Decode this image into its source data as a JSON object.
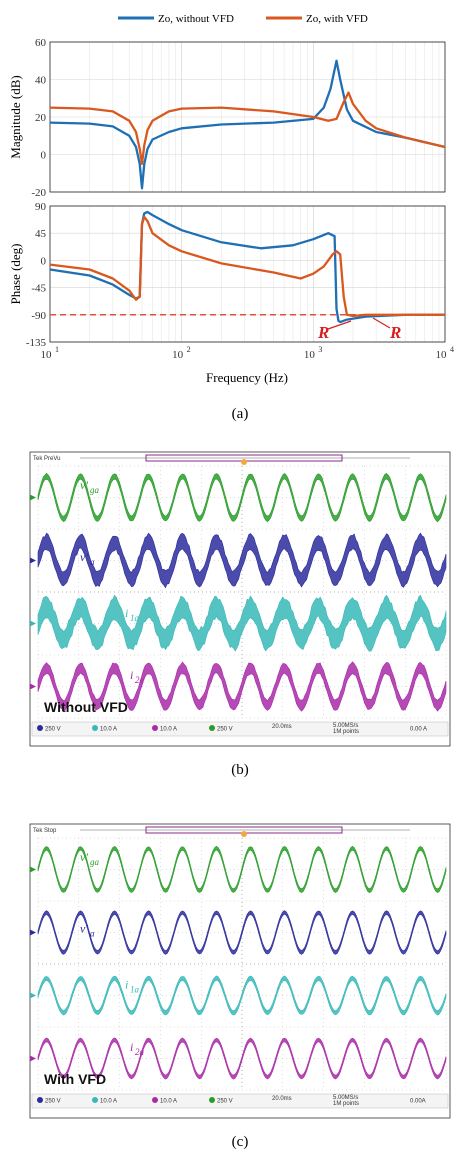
{
  "chart_data": [
    {
      "type": "line",
      "panel": "a",
      "legend": [
        "Zo, without VFD",
        "Zo, with VFD"
      ],
      "colors": {
        "without": "#1f6fb4",
        "with": "#d9581f",
        "ref": "#e05040"
      },
      "xlabel": "Frequency (Hz)",
      "xscale": "log",
      "xlim": [
        10,
        10000
      ],
      "xticks": [
        "10^1",
        "10^2",
        "10^3",
        "10^4"
      ],
      "magnitude": {
        "ylabel": "Magnitude (dB)",
        "ylim": [
          -20,
          60
        ],
        "yticks": [
          "60",
          "40",
          "20",
          "0",
          "-20"
        ],
        "series": [
          {
            "name": "Zo, without VFD",
            "x": [
              10,
              20,
              30,
              40,
              45,
              48,
              50,
              52,
              55,
              60,
              80,
              100,
              200,
              500,
              1000,
              1200,
              1350,
              1500,
              1600,
              1800,
              2000,
              3000,
              5000,
              10000
            ],
            "y": [
              17,
              16.5,
              15,
              10,
              4,
              -5,
              -18,
              -5,
              3,
              8,
              12,
              14,
              16,
              17,
              19,
              25,
              35,
              50,
              40,
              24,
              18,
              12,
              9,
              4
            ]
          },
          {
            "name": "Zo, with VFD",
            "x": [
              10,
              20,
              30,
              40,
              45,
              48,
              50,
              52,
              55,
              60,
              80,
              100,
              200,
              500,
              1000,
              1300,
              1500,
              1700,
              1850,
              2000,
              2500,
              3000,
              5000,
              10000
            ],
            "y": [
              25,
              24.5,
              23,
              18,
              12,
              3,
              -5,
              5,
              13,
              18,
              23,
              24.5,
              25,
              23,
              20,
              18,
              19,
              28,
              33,
              27,
              18,
              14,
              9,
              4
            ]
          }
        ]
      },
      "phase": {
        "ylabel": "Phase (deg)",
        "ylim": [
          -135,
          90
        ],
        "yticks": [
          "90",
          "45",
          "0",
          "-45",
          "-90",
          "-135"
        ],
        "ref_line": -90,
        "annotations": [
          "R",
          "R"
        ],
        "series": [
          {
            "name": "Zo, without VFD",
            "x": [
              10,
              20,
              30,
              40,
              45,
              48,
              50,
              52,
              55,
              60,
              80,
              100,
              200,
              400,
              700,
              1000,
              1300,
              1450,
              1500,
              1550,
              1600,
              1800,
              2500,
              5000,
              10000
            ],
            "y": [
              -15,
              -25,
              -40,
              -57,
              -63,
              -60,
              60,
              78,
              80,
              75,
              60,
              50,
              30,
              20,
              25,
              35,
              45,
              40,
              -80,
              -100,
              -102,
              -98,
              -93,
              -90,
              -90
            ]
          },
          {
            "name": "Zo, with VFD",
            "x": [
              10,
              20,
              30,
              40,
              45,
              48,
              50,
              52,
              55,
              60,
              80,
              100,
              200,
              500,
              800,
              1000,
              1200,
              1400,
              1500,
              1600,
              1700,
              1800,
              2000,
              2500,
              5000,
              10000
            ],
            "y": [
              -7,
              -15,
              -30,
              -50,
              -65,
              -60,
              60,
              72,
              65,
              45,
              25,
              15,
              -5,
              -20,
              -30,
              -22,
              -10,
              10,
              15,
              10,
              -60,
              -90,
              -92,
              -90,
              -90,
              -90
            ]
          }
        ]
      }
    },
    {
      "type": "line",
      "panel": "b",
      "title": "Without VFD",
      "scope_header": "Tek PreVu",
      "traces": [
        {
          "label": "v'",
          "sub": "ga",
          "color": "#2a9c2a",
          "cycles": 12,
          "amp": 0.8,
          "noise": 0.12
        },
        {
          "label": "v'",
          "sub": "a",
          "color": "#2b2b9c",
          "cycles": 12,
          "amp": 0.7,
          "noise": 0.45
        },
        {
          "label": "i",
          "sub": "1a",
          "color": "#38b8b8",
          "cycles": 12,
          "amp": 0.6,
          "noise": 0.65
        },
        {
          "label": "i",
          "sub": "2a",
          "color": "#a82aa8",
          "cycles": 12,
          "amp": 0.7,
          "noise": 0.3
        }
      ],
      "status_bar": [
        "250 V",
        "10.0 A",
        "10.0 A",
        "250 V",
        "20.0ms",
        "5.00MS/s",
        "1M points",
        "0.00 A"
      ]
    },
    {
      "type": "line",
      "panel": "c",
      "title": "With VFD",
      "scope_header": "Tek Stop",
      "traces": [
        {
          "label": "v'",
          "sub": "ga",
          "color": "#2a9c2a",
          "cycles": 12,
          "amp": 0.8,
          "noise": 0.06
        },
        {
          "label": "v'",
          "sub": "a",
          "color": "#2b2b9c",
          "cycles": 12,
          "amp": 0.75,
          "noise": 0.06
        },
        {
          "label": "i",
          "sub": "1a",
          "color": "#38b8b8",
          "cycles": 12,
          "amp": 0.65,
          "noise": 0.08
        },
        {
          "label": "i",
          "sub": "2a",
          "color": "#a82aa8",
          "cycles": 12,
          "amp": 0.7,
          "noise": 0.06
        }
      ],
      "status_bar": [
        "250 V",
        "10.0 A",
        "10.0 A",
        "250 V",
        "20.0ms",
        "5.00MS/s",
        "1M points",
        "0.00A"
      ]
    }
  ],
  "captions": {
    "a": "(a)",
    "b": "(b)",
    "c": "(c)"
  }
}
